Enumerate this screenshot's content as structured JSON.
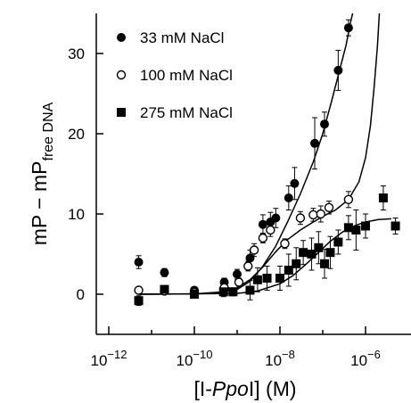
{
  "chart_data": {
    "type": "scatter",
    "xlabel": {
      "prefix": "[I-",
      "italic": "Ppo",
      "suffix": "I] (M)"
    },
    "ylabel": {
      "main": "mP − mP",
      "subscript": "free DNA"
    },
    "xscale": "log",
    "xlim": [
      1e-12,
      4e-06
    ],
    "ylim": [
      -5,
      35
    ],
    "x_ticks": [
      {
        "value": 1e-12,
        "base": "10",
        "exp": "−12"
      },
      {
        "value": 1e-10,
        "base": "10",
        "exp": "−10"
      },
      {
        "value": 1e-08,
        "base": "10",
        "exp": "−8"
      },
      {
        "value": 1e-06,
        "base": "10",
        "exp": "−6"
      }
    ],
    "y_ticks": [
      0,
      10,
      20,
      30
    ],
    "legend_position": "top-left",
    "series": [
      {
        "name": "33 mM NaCl",
        "marker": "filled-circle",
        "color": "#000000",
        "points": [
          {
            "x": 5e-12,
            "y": 4.0,
            "err": 0.8
          },
          {
            "x": 2e-11,
            "y": 2.7,
            "err": 0.5
          },
          {
            "x": 1e-10,
            "y": 0.5,
            "err": 0.4
          },
          {
            "x": 5e-10,
            "y": 1.5,
            "err": 0.5
          },
          {
            "x": 1e-09,
            "y": 2.5,
            "err": 0.6
          },
          {
            "x": 2e-09,
            "y": 4.5,
            "err": 1.0
          },
          {
            "x": 4e-09,
            "y": 8.7,
            "err": 1.2
          },
          {
            "x": 6e-09,
            "y": 9.0,
            "err": 1.2
          },
          {
            "x": 8e-09,
            "y": 9.5,
            "err": 1.2
          },
          {
            "x": 1.6e-08,
            "y": 12.0,
            "err": 1.5
          },
          {
            "x": 2.2e-08,
            "y": 13.8,
            "err": 2.0
          },
          {
            "x": 6.5e-08,
            "y": 18.8,
            "err": 3.2
          },
          {
            "x": 1.1e-07,
            "y": 21.2,
            "err": 1.5
          },
          {
            "x": 2.3e-07,
            "y": 27.9,
            "err": 2.5
          },
          {
            "x": 4e-07,
            "y": 33.2,
            "err": 1.0
          }
        ]
      },
      {
        "name": "100 mM NaCl",
        "marker": "open-circle",
        "color": "#000000",
        "points": [
          {
            "x": 5e-12,
            "y": 0.5,
            "err": 0.3
          },
          {
            "x": 2e-11,
            "y": 0.4,
            "err": 0.3
          },
          {
            "x": 1e-10,
            "y": 0.2,
            "err": 0.3
          },
          {
            "x": 5e-10,
            "y": 0.8,
            "err": 0.5
          },
          {
            "x": 1.1e-09,
            "y": 1.5,
            "err": 0.5
          },
          {
            "x": 1.8e-09,
            "y": 3.5,
            "err": 0.6
          },
          {
            "x": 2.5e-09,
            "y": 5.5,
            "err": 0.8
          },
          {
            "x": 4e-09,
            "y": 7.0,
            "err": 0.6
          },
          {
            "x": 6e-09,
            "y": 8.0,
            "err": 0.8
          },
          {
            "x": 1.3e-08,
            "y": 6.3,
            "err": 0.6
          },
          {
            "x": 3e-08,
            "y": 9.5,
            "err": 0.8
          },
          {
            "x": 6e-08,
            "y": 9.9,
            "err": 0.8
          },
          {
            "x": 9e-08,
            "y": 10.0,
            "err": 1.0
          },
          {
            "x": 1.4e-07,
            "y": 10.8,
            "err": 0.8
          },
          {
            "x": 4e-07,
            "y": 11.8,
            "err": 1.0
          }
        ]
      },
      {
        "name": "275 mM NaCl",
        "marker": "filled-square",
        "color": "#000000",
        "points": [
          {
            "x": 5e-12,
            "y": -0.8,
            "err": 0.6
          },
          {
            "x": 2e-11,
            "y": 0.6,
            "err": 0.4
          },
          {
            "x": 1e-10,
            "y": 0.0,
            "err": 0.5
          },
          {
            "x": 4.8e-10,
            "y": 0.3,
            "err": 0.6
          },
          {
            "x": 8e-10,
            "y": 0.3,
            "err": 0.5
          },
          {
            "x": 2e-09,
            "y": 0.5,
            "err": 1.2
          },
          {
            "x": 3e-09,
            "y": 1.8,
            "err": 1.5
          },
          {
            "x": 5e-09,
            "y": 2.0,
            "err": 1.5
          },
          {
            "x": 1e-08,
            "y": 2.0,
            "err": 1.5
          },
          {
            "x": 1.6e-08,
            "y": 3.0,
            "err": 2.0
          },
          {
            "x": 2.4e-08,
            "y": 3.8,
            "err": 2.0
          },
          {
            "x": 3.5e-08,
            "y": 5.2,
            "err": 1.5
          },
          {
            "x": 5.5e-08,
            "y": 5.0,
            "err": 2.0
          },
          {
            "x": 8e-08,
            "y": 5.8,
            "err": 2.0
          },
          {
            "x": 1.1e-07,
            "y": 3.8,
            "err": 1.8
          },
          {
            "x": 1.5e-07,
            "y": 5.2,
            "err": 2.0
          },
          {
            "x": 2.3e-07,
            "y": 6.5,
            "err": 1.5
          },
          {
            "x": 4e-07,
            "y": 8.3,
            "err": 1.5
          },
          {
            "x": 6e-07,
            "y": 8.0,
            "err": 2.5
          },
          {
            "x": 1e-06,
            "y": 8.5,
            "err": 1.5
          },
          {
            "x": 2.6e-06,
            "y": 12.0,
            "err": 1.5
          },
          {
            "x": 5e-06,
            "y": 8.5,
            "err": 1.0
          }
        ]
      }
    ],
    "fit_curves": [
      {
        "points": [
          {
            "x": 5e-12,
            "y": 0.0
          },
          {
            "x": 1e-10,
            "y": 0.05
          },
          {
            "x": 3e-10,
            "y": 0.15
          },
          {
            "x": 1e-09,
            "y": 0.6
          },
          {
            "x": 2e-09,
            "y": 1.6
          },
          {
            "x": 4e-09,
            "y": 3.5
          },
          {
            "x": 8e-09,
            "y": 6.0
          },
          {
            "x": 1.5e-08,
            "y": 9.0
          },
          {
            "x": 3e-08,
            "y": 12.5
          },
          {
            "x": 6e-08,
            "y": 16.5
          },
          {
            "x": 1e-07,
            "y": 20.0
          },
          {
            "x": 1.6e-07,
            "y": 24.0
          },
          {
            "x": 2.5e-07,
            "y": 28.0
          },
          {
            "x": 3.5e-07,
            "y": 31.0
          },
          {
            "x": 4.5e-07,
            "y": 34.0
          },
          {
            "x": 5e-07,
            "y": 35.0
          }
        ]
      },
      {
        "points": [
          {
            "x": 5e-12,
            "y": 0.0
          },
          {
            "x": 1e-10,
            "y": 0.05
          },
          {
            "x": 5e-10,
            "y": 0.3
          },
          {
            "x": 1e-09,
            "y": 0.8
          },
          {
            "x": 2e-09,
            "y": 1.8
          },
          {
            "x": 4e-09,
            "y": 3.4
          },
          {
            "x": 8e-09,
            "y": 5.3
          },
          {
            "x": 1.5e-08,
            "y": 6.8
          },
          {
            "x": 3e-08,
            "y": 8.0
          },
          {
            "x": 6e-08,
            "y": 9.0
          },
          {
            "x": 1e-07,
            "y": 9.7
          },
          {
            "x": 2e-07,
            "y": 10.5
          },
          {
            "x": 4e-07,
            "y": 11.8
          },
          {
            "x": 7e-07,
            "y": 14.0
          },
          {
            "x": 1e-06,
            "y": 17.0
          },
          {
            "x": 1.3e-06,
            "y": 21.0
          },
          {
            "x": 1.6e-06,
            "y": 26.0
          },
          {
            "x": 1.9e-06,
            "y": 31.0
          },
          {
            "x": 2.1e-06,
            "y": 35.0
          }
        ]
      },
      {
        "points": [
          {
            "x": 5e-12,
            "y": 0.0
          },
          {
            "x": 1e-09,
            "y": 0.1
          },
          {
            "x": 3e-09,
            "y": 0.4
          },
          {
            "x": 1e-08,
            "y": 1.3
          },
          {
            "x": 2e-08,
            "y": 2.3
          },
          {
            "x": 4e-08,
            "y": 3.7
          },
          {
            "x": 8e-08,
            "y": 5.2
          },
          {
            "x": 1.5e-07,
            "y": 6.6
          },
          {
            "x": 3e-07,
            "y": 7.8
          },
          {
            "x": 6e-07,
            "y": 8.6
          },
          {
            "x": 1e-06,
            "y": 9.0
          },
          {
            "x": 2e-06,
            "y": 9.3
          },
          {
            "x": 4e-06,
            "y": 9.4
          }
        ]
      }
    ]
  }
}
